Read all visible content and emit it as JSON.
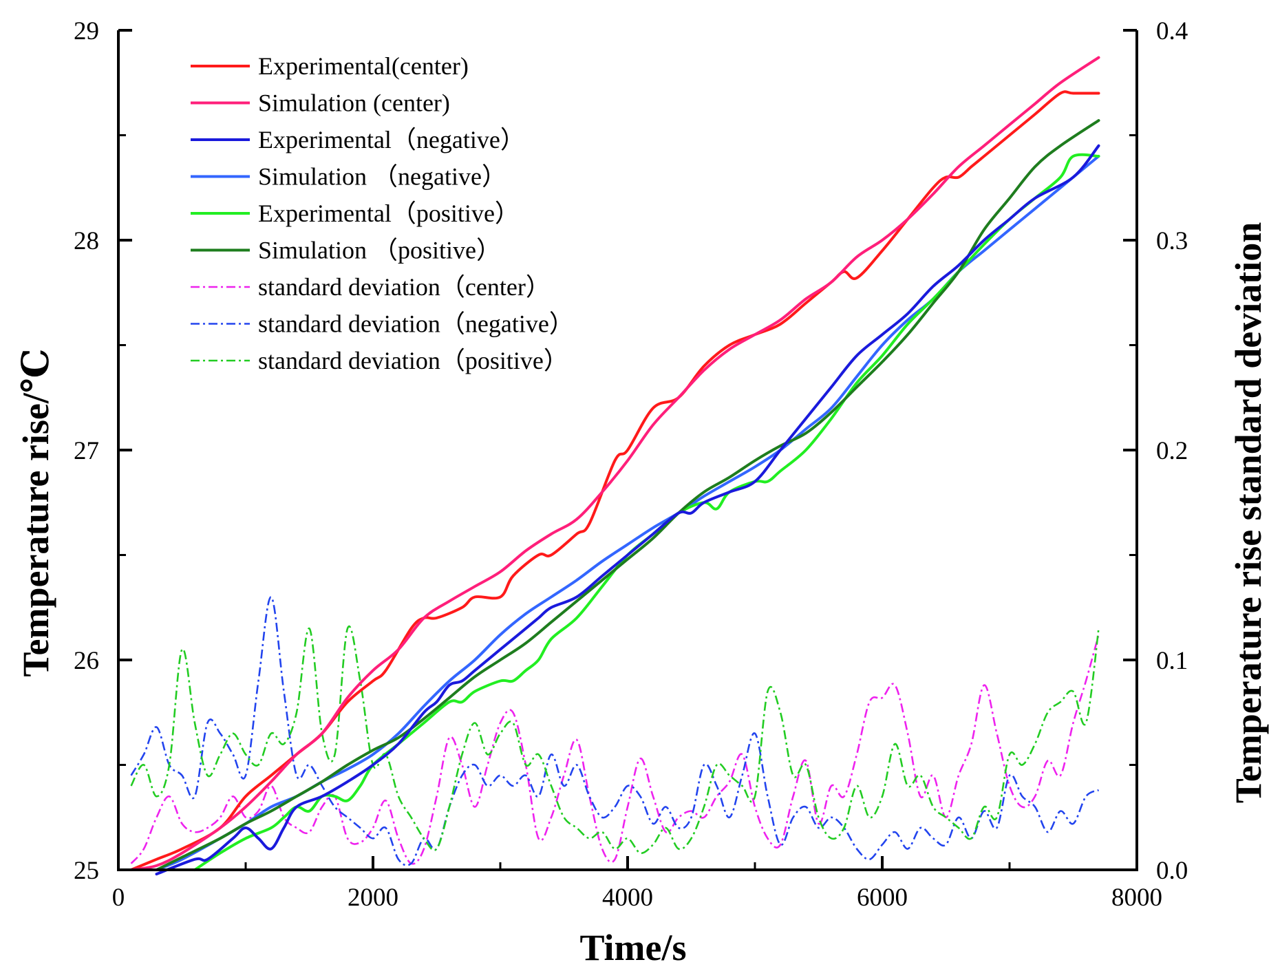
{
  "chart_data": {
    "type": "line",
    "xlabel": "Time/s",
    "ylabel": "Temperature rise/℃",
    "y2label": "Temperature rise standard deviation",
    "xlim": [
      0,
      8000
    ],
    "ylim": [
      25,
      29
    ],
    "y2lim": [
      0.0,
      0.4
    ],
    "xticks": [
      "0",
      "2000",
      "4000",
      "6000",
      "8000"
    ],
    "yticks": [
      "25",
      "26",
      "27",
      "28",
      "29"
    ],
    "y2ticks": [
      "0.0",
      "0.1",
      "0.2",
      "0.3",
      "0.4"
    ],
    "grid": false,
    "legend_position": "top-left",
    "series": [
      {
        "name": " Experimental(center)",
        "axis": "left",
        "color": "#ff1a1a",
        "dash": "solid",
        "x": [
          100,
          300,
          500,
          800,
          1000,
          1200,
          1400,
          1600,
          1800,
          2000,
          2100,
          2300,
          2400,
          2500,
          2700,
          2800,
          3000,
          3100,
          3300,
          3400,
          3600,
          3700,
          3900,
          4000,
          4200,
          4400,
          4600,
          4800,
          5000,
          5200,
          5400,
          5600,
          5700,
          5800,
          6000,
          6200,
          6400,
          6500,
          6600,
          6700,
          6800,
          7000,
          7200,
          7400,
          7500,
          7700
        ],
        "y": [
          25.0,
          25.05,
          25.1,
          25.2,
          25.35,
          25.45,
          25.55,
          25.65,
          25.8,
          25.9,
          25.95,
          26.15,
          26.2,
          26.2,
          26.25,
          26.3,
          26.3,
          26.4,
          26.5,
          26.5,
          26.6,
          26.65,
          26.95,
          27.0,
          27.2,
          27.25,
          27.4,
          27.5,
          27.55,
          27.6,
          27.7,
          27.8,
          27.85,
          27.82,
          27.95,
          28.1,
          28.25,
          28.3,
          28.3,
          28.35,
          28.4,
          28.5,
          28.6,
          28.7,
          28.7,
          28.7
        ]
      },
      {
        "name": "Simulation (center)",
        "axis": "left",
        "color": "#ff1f7a",
        "dash": "solid",
        "x": [
          100,
          300,
          500,
          800,
          1000,
          1200,
          1400,
          1600,
          1800,
          2000,
          2200,
          2400,
          2600,
          2800,
          3000,
          3200,
          3400,
          3600,
          3800,
          4000,
          4200,
          4400,
          4600,
          4800,
          5000,
          5200,
          5400,
          5600,
          5800,
          6000,
          6200,
          6400,
          6600,
          6800,
          7000,
          7200,
          7400,
          7700
        ],
        "y": [
          25.0,
          25.02,
          25.08,
          25.2,
          25.3,
          25.42,
          25.55,
          25.65,
          25.82,
          25.95,
          26.05,
          26.2,
          26.28,
          26.35,
          26.42,
          26.52,
          26.6,
          26.67,
          26.8,
          26.95,
          27.12,
          27.25,
          27.38,
          27.48,
          27.55,
          27.62,
          27.72,
          27.8,
          27.92,
          28.0,
          28.1,
          28.22,
          28.35,
          28.45,
          28.55,
          28.65,
          28.75,
          28.87
        ]
      },
      {
        "name": "Experimental（negative）",
        "axis": "left",
        "color": "#1a1adc",
        "dash": "solid",
        "x": [
          300,
          600,
          700,
          900,
          1000,
          1100,
          1200,
          1300,
          1400,
          1600,
          1800,
          2000,
          2200,
          2400,
          2500,
          2600,
          2700,
          2800,
          3000,
          3200,
          3300,
          3400,
          3600,
          3800,
          4000,
          4200,
          4400,
          4500,
          4600,
          4800,
          5000,
          5200,
          5400,
          5600,
          5800,
          6000,
          6200,
          6400,
          6600,
          6800,
          7000,
          7200,
          7500,
          7700
        ],
        "y": [
          24.98,
          25.05,
          25.05,
          25.15,
          25.2,
          25.15,
          25.1,
          25.2,
          25.3,
          25.35,
          25.42,
          25.5,
          25.6,
          25.75,
          25.8,
          25.88,
          25.9,
          25.95,
          26.05,
          26.15,
          26.2,
          26.25,
          26.3,
          26.4,
          26.5,
          26.6,
          26.7,
          26.7,
          26.75,
          26.8,
          26.85,
          27.0,
          27.15,
          27.3,
          27.45,
          27.55,
          27.65,
          27.78,
          27.88,
          28.0,
          28.1,
          28.2,
          28.3,
          28.45
        ]
      },
      {
        "name": "Simulation （negative）",
        "axis": "left",
        "color": "#3366ff",
        "dash": "solid",
        "x": [
          300,
          500,
          800,
          1000,
          1200,
          1400,
          1600,
          1800,
          2000,
          2200,
          2400,
          2600,
          2800,
          3000,
          3200,
          3400,
          3600,
          3800,
          4000,
          4200,
          4400,
          4600,
          4800,
          5000,
          5200,
          5400,
          5600,
          5800,
          6000,
          6200,
          6400,
          6600,
          6800,
          7000,
          7200,
          7400,
          7700
        ],
        "y": [
          25.0,
          25.05,
          25.15,
          25.22,
          25.3,
          25.35,
          25.42,
          25.48,
          25.55,
          25.65,
          25.78,
          25.9,
          26.0,
          26.12,
          26.22,
          26.3,
          26.38,
          26.47,
          26.55,
          26.63,
          26.7,
          26.78,
          26.85,
          26.92,
          27.0,
          27.1,
          27.2,
          27.35,
          27.5,
          27.62,
          27.72,
          27.85,
          27.95,
          28.05,
          28.15,
          28.25,
          28.4
        ]
      },
      {
        "name": "Experimental（positive）",
        "axis": "left",
        "color": "#22ee22",
        "dash": "solid",
        "x": [
          600,
          800,
          1000,
          1200,
          1300,
          1400,
          1500,
          1600,
          1700,
          1800,
          1900,
          2000,
          2200,
          2400,
          2600,
          2700,
          2800,
          3000,
          3100,
          3200,
          3300,
          3400,
          3600,
          3800,
          4000,
          4200,
          4400,
          4600,
          4700,
          4800,
          5000,
          5100,
          5200,
          5400,
          5600,
          5800,
          6000,
          6200,
          6400,
          6600,
          6800,
          7000,
          7200,
          7400,
          7500,
          7700
        ],
        "y": [
          25.0,
          25.08,
          25.15,
          25.2,
          25.25,
          25.3,
          25.28,
          25.35,
          25.35,
          25.33,
          25.4,
          25.5,
          25.6,
          25.7,
          25.8,
          25.8,
          25.85,
          25.9,
          25.9,
          25.95,
          26.0,
          26.1,
          26.2,
          26.35,
          26.5,
          26.6,
          26.7,
          26.75,
          26.72,
          26.8,
          26.85,
          26.85,
          26.9,
          27.0,
          27.15,
          27.32,
          27.45,
          27.6,
          27.72,
          27.85,
          27.98,
          28.1,
          28.2,
          28.3,
          28.4,
          28.4
        ]
      },
      {
        "name": "Simulation （positive）",
        "axis": "left",
        "color": "#1e7d1e",
        "dash": "solid",
        "x": [
          300,
          500,
          800,
          1000,
          1200,
          1400,
          1600,
          1800,
          2000,
          2200,
          2400,
          2600,
          2800,
          3000,
          3200,
          3400,
          3600,
          3800,
          4000,
          4200,
          4400,
          4600,
          4800,
          5000,
          5200,
          5400,
          5600,
          5800,
          6000,
          6200,
          6400,
          6600,
          6800,
          7000,
          7200,
          7400,
          7700
        ],
        "y": [
          25.0,
          25.06,
          25.15,
          25.22,
          25.28,
          25.35,
          25.42,
          25.5,
          25.57,
          25.63,
          25.72,
          25.82,
          25.92,
          26.0,
          26.08,
          26.18,
          26.28,
          26.38,
          26.48,
          26.58,
          26.7,
          26.8,
          26.87,
          26.95,
          27.02,
          27.08,
          27.18,
          27.3,
          27.42,
          27.55,
          27.7,
          27.85,
          28.05,
          28.2,
          28.35,
          28.45,
          28.57
        ]
      },
      {
        "name": "standard deviation（center）",
        "axis": "right",
        "color": "#ee22ee",
        "dash": "dashdot",
        "x": [
          100,
          200,
          300,
          400,
          500,
          600,
          700,
          800,
          900,
          1000,
          1100,
          1200,
          1300,
          1400,
          1500,
          1600,
          1700,
          1800,
          1900,
          2000,
          2100,
          2200,
          2300,
          2400,
          2500,
          2600,
          2700,
          2800,
          2900,
          3000,
          3100,
          3200,
          3300,
          3400,
          3500,
          3600,
          3700,
          3800,
          3900,
          4000,
          4100,
          4200,
          4300,
          4400,
          4500,
          4600,
          4700,
          4800,
          4900,
          5000,
          5100,
          5200,
          5300,
          5400,
          5500,
          5600,
          5700,
          5800,
          5900,
          6000,
          6100,
          6200,
          6300,
          6400,
          6500,
          6600,
          6700,
          6800,
          6900,
          7000,
          7100,
          7200,
          7300,
          7400,
          7500,
          7600,
          7700
        ],
        "y": [
          0.003,
          0.01,
          0.025,
          0.035,
          0.022,
          0.018,
          0.02,
          0.025,
          0.035,
          0.025,
          0.028,
          0.04,
          0.025,
          0.02,
          0.018,
          0.03,
          0.035,
          0.015,
          0.013,
          0.02,
          0.033,
          0.015,
          0.003,
          0.01,
          0.035,
          0.063,
          0.05,
          0.03,
          0.05,
          0.07,
          0.075,
          0.05,
          0.015,
          0.025,
          0.045,
          0.062,
          0.035,
          0.01,
          0.005,
          0.03,
          0.053,
          0.035,
          0.018,
          0.025,
          0.028,
          0.025,
          0.035,
          0.042,
          0.055,
          0.03,
          0.015,
          0.012,
          0.035,
          0.052,
          0.022,
          0.04,
          0.035,
          0.055,
          0.08,
          0.082,
          0.088,
          0.065,
          0.035,
          0.045,
          0.025,
          0.045,
          0.06,
          0.088,
          0.065,
          0.04,
          0.03,
          0.035,
          0.052,
          0.045,
          0.07,
          0.09,
          0.112
        ]
      },
      {
        "name": "standard deviation（negative）",
        "axis": "right",
        "color": "#2244ee",
        "dash": "dashdot",
        "x": [
          100,
          200,
          300,
          400,
          500,
          600,
          700,
          800,
          900,
          1000,
          1100,
          1200,
          1300,
          1400,
          1500,
          1600,
          1700,
          1800,
          1900,
          2000,
          2100,
          2200,
          2300,
          2400,
          2500,
          2600,
          2700,
          2800,
          2900,
          3000,
          3100,
          3200,
          3300,
          3400,
          3500,
          3600,
          3700,
          3800,
          3900,
          4000,
          4100,
          4200,
          4300,
          4400,
          4500,
          4600,
          4700,
          4800,
          4900,
          5000,
          5100,
          5200,
          5300,
          5400,
          5500,
          5600,
          5700,
          5800,
          5900,
          6000,
          6100,
          6200,
          6300,
          6400,
          6500,
          6600,
          6700,
          6800,
          6900,
          7000,
          7100,
          7200,
          7300,
          7400,
          7500,
          7600,
          7700
        ],
        "y": [
          0.045,
          0.055,
          0.068,
          0.05,
          0.045,
          0.035,
          0.07,
          0.065,
          0.055,
          0.045,
          0.09,
          0.13,
          0.085,
          0.045,
          0.05,
          0.04,
          0.03,
          0.025,
          0.02,
          0.015,
          0.02,
          0.005,
          0.003,
          0.015,
          0.01,
          0.03,
          0.045,
          0.05,
          0.04,
          0.045,
          0.04,
          0.045,
          0.035,
          0.055,
          0.04,
          0.05,
          0.035,
          0.025,
          0.03,
          0.04,
          0.035,
          0.022,
          0.03,
          0.02,
          0.025,
          0.05,
          0.04,
          0.025,
          0.045,
          0.065,
          0.035,
          0.012,
          0.025,
          0.03,
          0.02,
          0.025,
          0.02,
          0.01,
          0.005,
          0.012,
          0.018,
          0.01,
          0.02,
          0.015,
          0.012,
          0.025,
          0.015,
          0.028,
          0.02,
          0.045,
          0.035,
          0.03,
          0.018,
          0.028,
          0.022,
          0.035,
          0.038
        ]
      },
      {
        "name": "standard deviation（positive）",
        "axis": "right",
        "color": "#22cc22",
        "dash": "dashdot",
        "x": [
          100,
          200,
          300,
          400,
          500,
          600,
          700,
          800,
          900,
          1000,
          1100,
          1200,
          1300,
          1400,
          1500,
          1600,
          1700,
          1800,
          1900,
          2000,
          2100,
          2200,
          2300,
          2400,
          2500,
          2600,
          2700,
          2800,
          2900,
          3000,
          3100,
          3200,
          3300,
          3400,
          3500,
          3600,
          3700,
          3800,
          3900,
          4000,
          4100,
          4200,
          4300,
          4400,
          4500,
          4600,
          4700,
          4800,
          4900,
          5000,
          5100,
          5200,
          5300,
          5400,
          5500,
          5600,
          5700,
          5800,
          5900,
          6000,
          6100,
          6200,
          6300,
          6400,
          6500,
          6600,
          6700,
          6800,
          6900,
          7000,
          7100,
          7200,
          7300,
          7400,
          7500,
          7600,
          7700
        ],
        "y": [
          0.04,
          0.05,
          0.035,
          0.05,
          0.105,
          0.07,
          0.045,
          0.055,
          0.065,
          0.055,
          0.05,
          0.065,
          0.06,
          0.075,
          0.115,
          0.065,
          0.055,
          0.115,
          0.09,
          0.05,
          0.055,
          0.035,
          0.025,
          0.015,
          0.01,
          0.03,
          0.055,
          0.07,
          0.055,
          0.065,
          0.07,
          0.05,
          0.055,
          0.04,
          0.025,
          0.02,
          0.015,
          0.018,
          0.01,
          0.015,
          0.008,
          0.012,
          0.02,
          0.01,
          0.015,
          0.03,
          0.05,
          0.045,
          0.04,
          0.035,
          0.085,
          0.075,
          0.045,
          0.05,
          0.025,
          0.015,
          0.02,
          0.04,
          0.025,
          0.035,
          0.06,
          0.04,
          0.045,
          0.03,
          0.025,
          0.02,
          0.015,
          0.03,
          0.025,
          0.055,
          0.05,
          0.06,
          0.075,
          0.08,
          0.085,
          0.07,
          0.115
        ]
      }
    ]
  }
}
